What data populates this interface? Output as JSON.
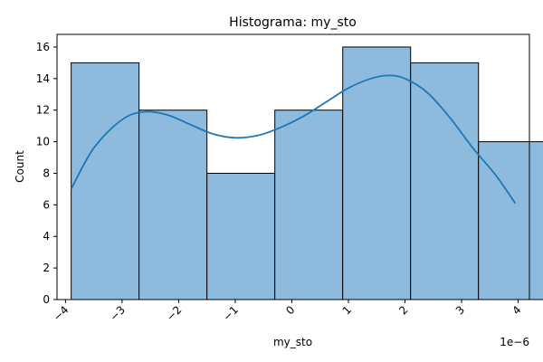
{
  "chart_data": {
    "type": "bar",
    "title": "Histograma: my_sto",
    "xlabel": "my_sto",
    "ylabel": "Count",
    "x_offset_label": "1e−6",
    "x_ticks": [
      -4,
      -3,
      -2,
      -1,
      0,
      1,
      2,
      3,
      4
    ],
    "x_tick_labels": [
      "−4",
      "−3",
      "−2",
      "−1",
      "0",
      "1",
      "2",
      "3",
      "4"
    ],
    "y_ticks": [
      0,
      2,
      4,
      6,
      8,
      10,
      12,
      14,
      16
    ],
    "y_tick_labels": [
      "0",
      "2",
      "4",
      "6",
      "8",
      "10",
      "12",
      "14",
      "16"
    ],
    "xlim": [
      -4.15,
      4.2
    ],
    "ylim": [
      0,
      16.8
    ],
    "bins": [
      {
        "start": -3.9,
        "end": -2.7,
        "count": 15
      },
      {
        "start": -2.7,
        "end": -1.5,
        "count": 12
      },
      {
        "start": -1.5,
        "end": -0.3,
        "count": 8
      },
      {
        "start": -0.3,
        "end": 0.9,
        "count": 12
      },
      {
        "start": 0.9,
        "end": 2.1,
        "count": 16
      },
      {
        "start": 2.1,
        "end": 3.3,
        "count": 15
      },
      {
        "start": 3.3,
        "end": 4.5,
        "count": 10
      }
    ],
    "kde": {
      "x": [
        -3.9,
        -3.5,
        -3.0,
        -2.6,
        -2.2,
        -1.8,
        -1.4,
        -1.0,
        -0.6,
        -0.2,
        0.2,
        0.6,
        1.0,
        1.4,
        1.7,
        2.0,
        2.4,
        2.8,
        3.2,
        3.6,
        3.95
      ],
      "y": [
        7.0,
        9.6,
        11.4,
        11.9,
        11.7,
        11.1,
        10.5,
        10.25,
        10.4,
        10.9,
        11.6,
        12.5,
        13.4,
        14.0,
        14.2,
        14.0,
        13.1,
        11.5,
        9.6,
        7.9,
        6.1
      ]
    },
    "bar_color": "#8ebbdd",
    "bar_edge_color": "#000000",
    "line_color": "#1f77b4",
    "grid": false,
    "legend": "none"
  }
}
